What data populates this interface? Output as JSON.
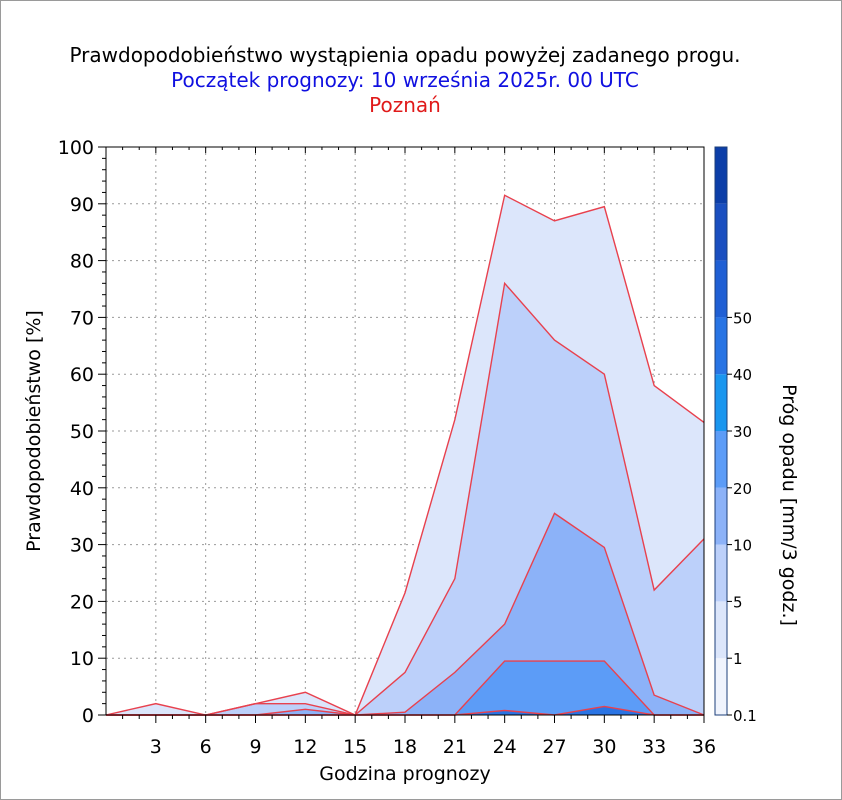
{
  "chart_data": {
    "type": "area",
    "title": "Prawdopodobieństwo wystąpienia opadu powyżej zadanego progu.",
    "subtitle": "Początek prognozy: 10 września 2025r. 00 UTC",
    "location": "Poznań",
    "xlabel": "Godzina prognozy",
    "ylabel": "Prawdopodobieństwo [%]",
    "colorbar_label": "Próg opadu [mm/3 godz.]",
    "x": [
      0,
      3,
      6,
      9,
      12,
      15,
      18,
      21,
      24,
      27,
      30,
      33,
      36
    ],
    "x_ticks": [
      "3",
      "6",
      "9",
      "12",
      "15",
      "18",
      "21",
      "24",
      "27",
      "30",
      "33",
      "36"
    ],
    "xlim": [
      0,
      36
    ],
    "y_ticks": [
      "0",
      "10",
      "20",
      "30",
      "40",
      "50",
      "60",
      "70",
      "80",
      "90",
      "100"
    ],
    "ylim": [
      0,
      100
    ],
    "series": [
      {
        "threshold": "0.1",
        "color": "#dce6fb",
        "values": [
          0,
          2,
          0,
          2,
          4,
          0,
          21.5,
          52,
          91.5,
          87,
          89.5,
          58,
          51.5
        ]
      },
      {
        "threshold": "1",
        "color": "#bcd0fa",
        "values": [
          0,
          0,
          0,
          2,
          2,
          0,
          7.5,
          24,
          76,
          66,
          60,
          22,
          31
        ]
      },
      {
        "threshold": "5",
        "color": "#8cb2f8",
        "values": [
          0,
          0,
          0,
          0,
          1,
          0,
          0.5,
          7.5,
          16,
          35.5,
          29.5,
          3.5,
          0
        ]
      },
      {
        "threshold": "10",
        "color": "#5c9cf7",
        "values": [
          0,
          0,
          0,
          0,
          0,
          0,
          0,
          0,
          9.5,
          9.5,
          9.5,
          0,
          0
        ]
      },
      {
        "threshold": "20",
        "color": "#2a74e4",
        "values": [
          0,
          0,
          0,
          0,
          0,
          0,
          0,
          0,
          0.8,
          0,
          1.5,
          0,
          0
        ]
      }
    ],
    "colorbar": {
      "labels": [
        "0.1",
        "1",
        "5",
        "10",
        "20",
        "30",
        "40",
        "50"
      ],
      "colors": [
        "#f0f4fd",
        "#dce6fb",
        "#bcd0fa",
        "#8cb2f8",
        "#5c9cf7",
        "#1a96ef",
        "#2874e4",
        "#1f5fd4",
        "#1a4fc0",
        "#0c3ea8"
      ]
    },
    "line_color": "#e8414e",
    "grid": true
  }
}
